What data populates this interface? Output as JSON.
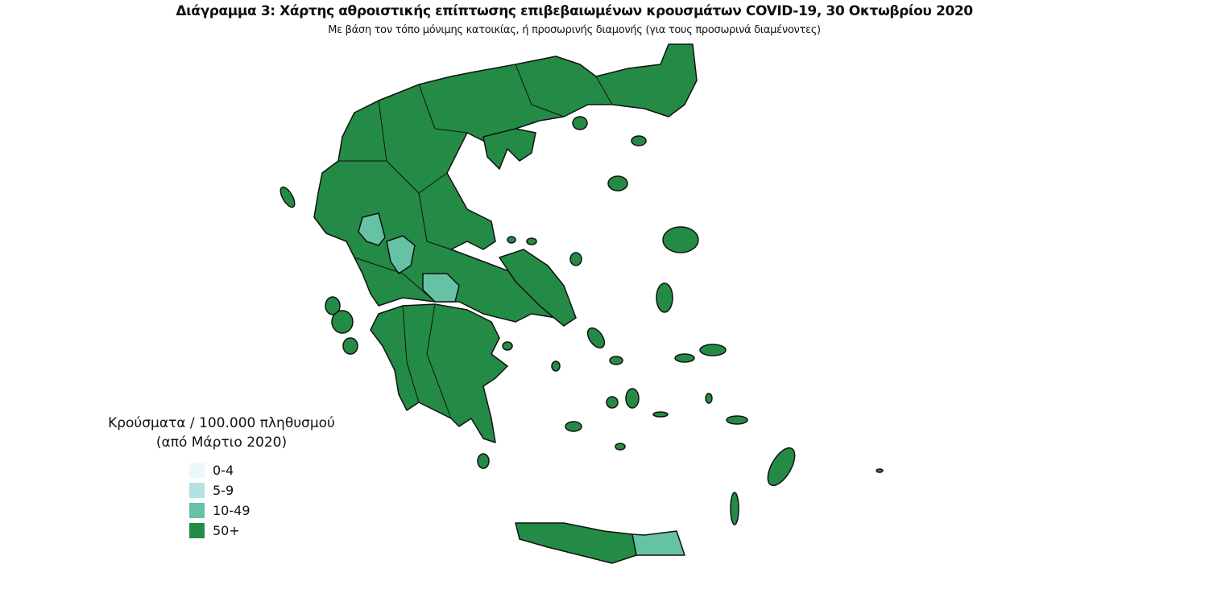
{
  "title": "Διάγραμμα 3: Χάρτης αθροιστικής επίπτωσης επιβεβαιωμένων κρουσμάτων COVID-19, 30 Οκτωβρίου 2020",
  "subtitle": "Με βάση τον τόπο μόνιμης κατοικίας, ή προσωρινής διαμονής (για τους προσωρινά διαμένοντες)",
  "legend": {
    "title_line1": "Κρούσματα / 100.000 πληθυσμού",
    "title_line2": "(από Μάρτιο 2020)",
    "items": [
      {
        "label": "0-4",
        "color": "#edf8fb"
      },
      {
        "label": "5-9",
        "color": "#b2e2e2"
      },
      {
        "label": "10-49",
        "color": "#66c2a4"
      },
      {
        "label": "50+",
        "color": "#238b45"
      }
    ]
  },
  "map": {
    "default_class": "50+",
    "regions_10_49": [
      "Western Thessaly/Epirus inland unit",
      "Central Greece inland unit",
      "Fthiotida-area unit",
      "Eastern Crete"
    ]
  }
}
